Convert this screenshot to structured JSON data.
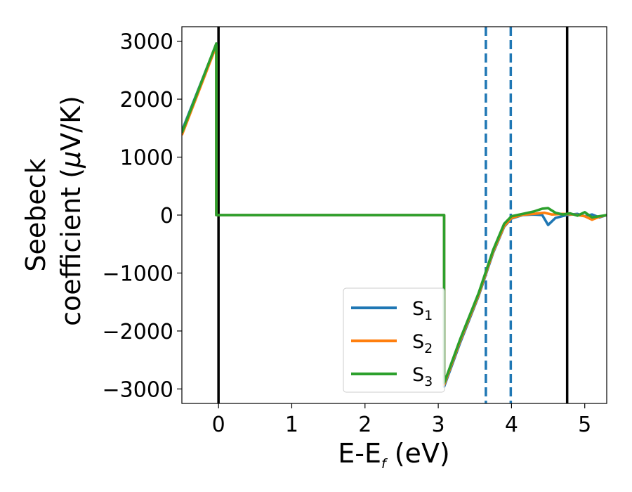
{
  "chart_data": {
    "type": "line",
    "title": "",
    "xlabel": {
      "main": "E-E",
      "sub": "f",
      "unit": " (eV)"
    },
    "ylabel": {
      "line1": "Seebeck",
      "line2_pre": "coefficient  (",
      "mu": "μ",
      "line2_post": "V/K)"
    },
    "xlim": [
      -0.5,
      5.3
    ],
    "ylim": [
      -3250,
      3250
    ],
    "xticks": [
      0,
      1,
      2,
      3,
      4,
      5
    ],
    "xtick_labels": [
      "0",
      "1",
      "2",
      "3",
      "4",
      "5"
    ],
    "yticks": [
      3000,
      2000,
      1000,
      0,
      -1000,
      -2000,
      -3000
    ],
    "ytick_labels": [
      "3000",
      "2000",
      "1000",
      "0",
      "−1000",
      "−2000",
      "−3000"
    ],
    "grid": false,
    "legend_position": "lower-center",
    "vlines": [
      {
        "x": 0.0,
        "style": "solid",
        "color": "#000000"
      },
      {
        "x": 4.76,
        "style": "solid",
        "color": "#000000"
      },
      {
        "x": 3.65,
        "style": "dashed",
        "color": "#1f77b4"
      },
      {
        "x": 3.99,
        "style": "dashed",
        "color": "#1f77b4"
      }
    ],
    "series": [
      {
        "name": "S",
        "sub": "1",
        "color": "#1f77b4",
        "points": [
          [
            -0.5,
            1450
          ],
          [
            -0.03,
            2950
          ],
          [
            -0.03,
            0
          ],
          [
            3.08,
            0
          ],
          [
            3.08,
            -2960
          ],
          [
            3.3,
            -2200
          ],
          [
            3.55,
            -1400
          ],
          [
            3.75,
            -650
          ],
          [
            3.9,
            -200
          ],
          [
            4.0,
            -60
          ],
          [
            4.15,
            0
          ],
          [
            4.3,
            10
          ],
          [
            4.42,
            0
          ],
          [
            4.5,
            -170
          ],
          [
            4.6,
            -50
          ],
          [
            4.75,
            0
          ],
          [
            4.9,
            20
          ],
          [
            5.0,
            -20
          ],
          [
            5.1,
            10
          ],
          [
            5.2,
            -40
          ],
          [
            5.3,
            0
          ]
        ]
      },
      {
        "name": "S",
        "sub": "2",
        "color": "#ff7f0e",
        "points": [
          [
            -0.5,
            1380
          ],
          [
            -0.03,
            2920
          ],
          [
            -0.03,
            0
          ],
          [
            3.08,
            0
          ],
          [
            3.08,
            -2930
          ],
          [
            3.3,
            -2170
          ],
          [
            3.55,
            -1380
          ],
          [
            3.75,
            -630
          ],
          [
            3.9,
            -190
          ],
          [
            4.0,
            -50
          ],
          [
            4.15,
            5
          ],
          [
            4.3,
            20
          ],
          [
            4.45,
            40
          ],
          [
            4.55,
            10
          ],
          [
            4.7,
            20
          ],
          [
            4.85,
            10
          ],
          [
            5.0,
            -20
          ],
          [
            5.1,
            -80
          ],
          [
            5.2,
            -30
          ],
          [
            5.3,
            0
          ]
        ]
      },
      {
        "name": "S",
        "sub": "3",
        "color": "#2ca02c",
        "points": [
          [
            -0.5,
            1420
          ],
          [
            -0.03,
            2960
          ],
          [
            -0.03,
            0
          ],
          [
            3.08,
            0
          ],
          [
            3.08,
            -2900
          ],
          [
            3.3,
            -2140
          ],
          [
            3.55,
            -1350
          ],
          [
            3.75,
            -600
          ],
          [
            3.9,
            -150
          ],
          [
            4.0,
            -20
          ],
          [
            4.15,
            20
          ],
          [
            4.3,
            60
          ],
          [
            4.42,
            110
          ],
          [
            4.5,
            120
          ],
          [
            4.6,
            40
          ],
          [
            4.7,
            10
          ],
          [
            4.8,
            30
          ],
          [
            4.9,
            -10
          ],
          [
            5.0,
            50
          ],
          [
            5.1,
            -40
          ],
          [
            5.2,
            -20
          ],
          [
            5.3,
            0
          ]
        ]
      }
    ]
  }
}
